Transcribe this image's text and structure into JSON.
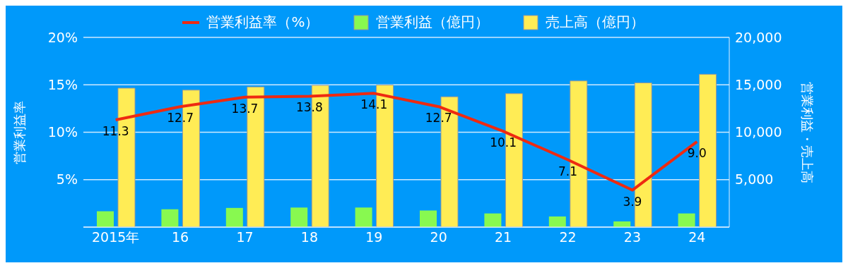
{
  "chart_data": {
    "type": "bar",
    "categories": [
      "2015年",
      "16",
      "17",
      "18",
      "19",
      "20",
      "21",
      "22",
      "23",
      "24"
    ],
    "ylabel": "営業利益率",
    "y2label": "営業利益・売上高",
    "ylim": [
      0,
      20
    ],
    "yticks": [
      {
        "value": 5,
        "label": "5%"
      },
      {
        "value": 10,
        "label": "10%"
      },
      {
        "value": 15,
        "label": "15%"
      },
      {
        "value": 20,
        "label": "20%"
      }
    ],
    "y2lim": [
      0,
      20000
    ],
    "y2ticks": [
      {
        "value": 5000,
        "label": "5,000"
      },
      {
        "value": 10000,
        "label": "10,000"
      },
      {
        "value": 15000,
        "label": "15,000"
      },
      {
        "value": 20000,
        "label": "20,000"
      }
    ],
    "grid": "y",
    "legend": "top",
    "marker": "none",
    "line_style": "solid",
    "series": [
      {
        "name": "営業利益率（%）",
        "type": "line",
        "color": "#ee2a11",
        "values": [
          11.3,
          12.7,
          13.7,
          13.8,
          14.1,
          12.7,
          10.1,
          7.1,
          3.9,
          9.0
        ],
        "value_labels": [
          "11.3",
          "12.7",
          "13.7",
          "13.8",
          "14.1",
          "12.7",
          "10.1",
          "7.1",
          "3.9",
          "9.0"
        ]
      },
      {
        "name": "営業利益（億円）",
        "axis": "y2",
        "color": "#88f950",
        "values": [
          1670,
          1880,
          2020,
          2060,
          2060,
          1750,
          1440,
          1120,
          600,
          1440
        ]
      },
      {
        "name": "売上高（億円）",
        "axis": "y2",
        "color": "#ffec55",
        "values": [
          14650,
          14440,
          14780,
          14940,
          14970,
          13740,
          14070,
          15410,
          15200,
          16110
        ]
      }
    ]
  }
}
